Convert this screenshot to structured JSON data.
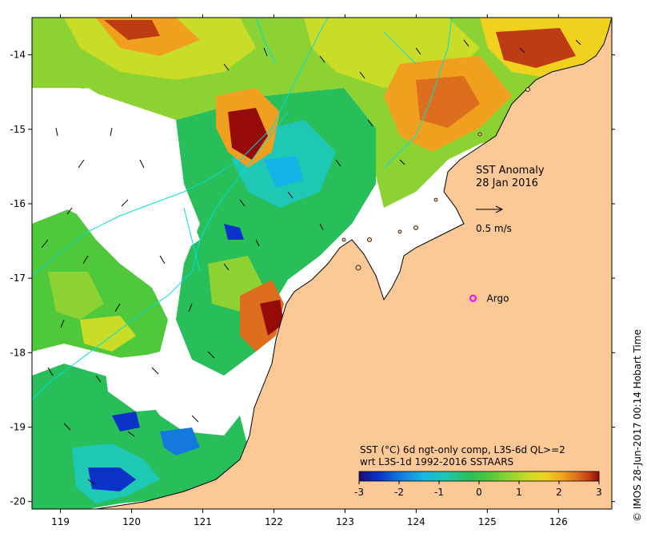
{
  "map": {
    "title_line1": "SST Anomaly",
    "title_line2": "28 Jan 2016",
    "current_scale_label": "0.5 m/s",
    "argo_label": "Argo",
    "argo_lon": 124.8,
    "argo_lat": -17.27,
    "lon_range": [
      118.6,
      126.75
    ],
    "lat_range": [
      -20.1,
      -13.5
    ],
    "lon_ticks": [
      119,
      120,
      121,
      122,
      123,
      124,
      125,
      126
    ],
    "lat_ticks": [
      -14,
      -15,
      -16,
      -17,
      -18,
      -19,
      -20
    ],
    "lon_tick_labels": [
      "119",
      "120",
      "121",
      "122",
      "123",
      "124",
      "125",
      "126"
    ],
    "lat_tick_labels": [
      "-14",
      "-15",
      "-16",
      "-17",
      "-18",
      "-19",
      "-20"
    ],
    "land_color": "#fcc896",
    "coast_color": "#000000",
    "contour_color": "#00dede"
  },
  "legend": {
    "line1": "SST (°C) 6d ngt-only comp, L3S-6d QL>=2",
    "line2": "wrt L3S-1d 1992-2016 SSTAARS",
    "min": -3,
    "max": 3,
    "tick_values": [
      -3,
      -2,
      -1,
      0,
      1,
      2,
      3
    ],
    "tick_labels": [
      "-3",
      "-2",
      "-1",
      "0",
      "1",
      "2",
      "3"
    ],
    "colors": [
      "#1a0a7a",
      "#0a32c8",
      "#1478dc",
      "#14b4e6",
      "#1ec8b4",
      "#28be5a",
      "#50c83c",
      "#8cd232",
      "#c8dc28",
      "#f0d21e",
      "#f0a01e",
      "#dc6e1e",
      "#be3c14",
      "#960a0a"
    ]
  },
  "credit": {
    "text": "© IMOS 28-Jun-2017 00:14 Hobart Time"
  }
}
